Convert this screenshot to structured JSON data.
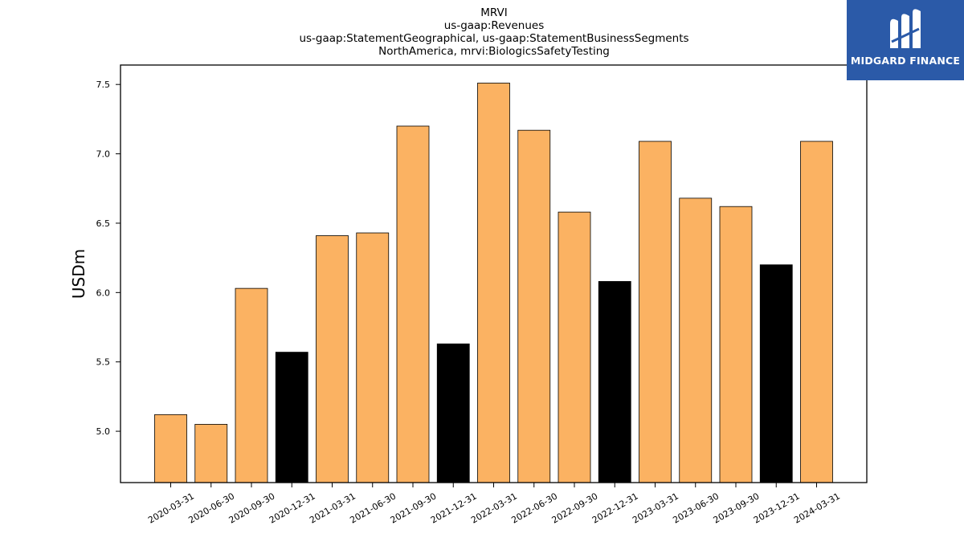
{
  "chart_data": {
    "type": "bar",
    "title_lines": [
      "MRVI",
      "us-gaap:Revenues",
      "us-gaap:StatementGeographical, us-gaap:StatementBusinessSegments",
      "NorthAmerica, mrvi:BiologicsSafetyTesting"
    ],
    "xlabel": "",
    "ylabel": "USDm",
    "ylim": [
      4.63,
      7.64
    ],
    "yticks": [
      5.0,
      5.5,
      6.0,
      6.5,
      7.0,
      7.5
    ],
    "yticklabels": [
      "5.0",
      "5.5",
      "6.0",
      "6.5",
      "7.0",
      "7.5"
    ],
    "categories": [
      "2020-03-31",
      "2020-06-30",
      "2020-09-30",
      "2020-12-31",
      "2021-03-31",
      "2021-06-30",
      "2021-09-30",
      "2021-12-31",
      "2022-03-31",
      "2022-06-30",
      "2022-09-30",
      "2022-12-31",
      "2023-03-31",
      "2023-06-30",
      "2023-09-30",
      "2023-12-31",
      "2024-03-31"
    ],
    "values": [
      5.12,
      5.05,
      6.03,
      5.57,
      6.41,
      6.43,
      7.2,
      5.63,
      7.51,
      7.17,
      6.58,
      6.08,
      7.09,
      6.68,
      6.62,
      6.2,
      7.09
    ],
    "bar_colors": [
      "#fbb262",
      "#fbb262",
      "#fbb262",
      "#000000",
      "#fbb262",
      "#fbb262",
      "#fbb262",
      "#000000",
      "#fbb262",
      "#fbb262",
      "#fbb262",
      "#000000",
      "#fbb262",
      "#fbb262",
      "#fbb262",
      "#000000",
      "#fbb262"
    ],
    "grid": false,
    "legend": "none"
  },
  "logo": {
    "text": "MIDGARD FINANCE",
    "background": "#2b5aa8",
    "icon": "midgard-m-icon"
  }
}
